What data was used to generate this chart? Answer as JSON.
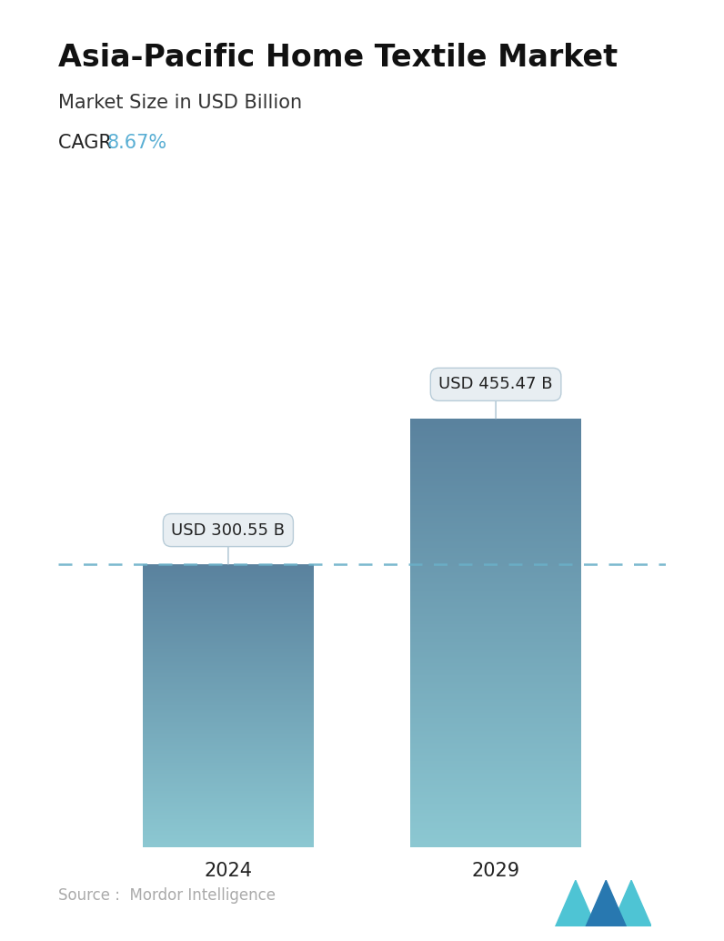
{
  "title": "Asia-Pacific Home Textile Market",
  "subtitle": "Market Size in USD Billion",
  "cagr_label": "CAGR ",
  "cagr_value": "8.67%",
  "cagr_color": "#5aafd4",
  "categories": [
    "2024",
    "2029"
  ],
  "values": [
    300.55,
    455.47
  ],
  "value_labels": [
    "USD 300.55 B",
    "USD 455.47 B"
  ],
  "bar_color_top": "#5a8fa8",
  "bar_color_bottom": "#8ecdd8",
  "dashed_line_color": "#6ab0c8",
  "dashed_line_value": 300.55,
  "source_text": "Source :  Mordor Intelligence",
  "source_color": "#aaaaaa",
  "background_color": "#ffffff",
  "title_fontsize": 24,
  "subtitle_fontsize": 15,
  "cagr_fontsize": 15,
  "label_fontsize": 13,
  "tick_fontsize": 15,
  "source_fontsize": 12,
  "ylim": [
    0,
    580
  ],
  "bar_width": 0.28,
  "x_positions": [
    0.28,
    0.72
  ]
}
